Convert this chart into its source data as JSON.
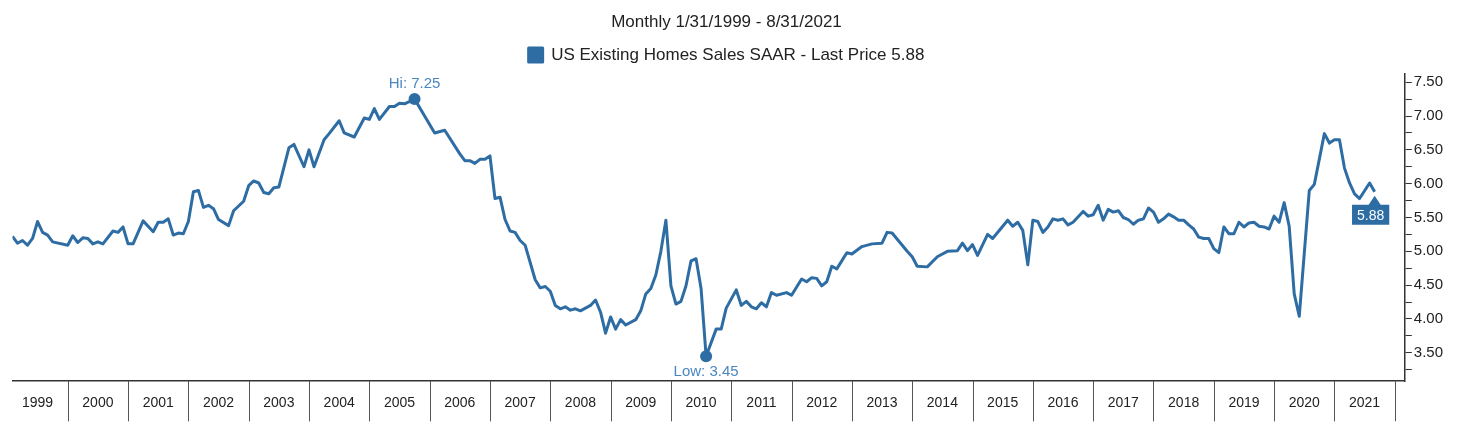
{
  "chart_data": {
    "type": "line",
    "legend_title": "Monthly 1/31/1999 - 8/31/2021",
    "legend": "top",
    "grid": false,
    "marker": "none",
    "line_style": "solid",
    "xlim": [
      "1999-01",
      "2022-02"
    ],
    "xticks": [
      {
        "value": "1999-06",
        "label": "1999"
      },
      {
        "value": "2000-06",
        "label": "2000"
      },
      {
        "value": "2001-06",
        "label": "2001"
      },
      {
        "value": "2002-06",
        "label": "2002"
      },
      {
        "value": "2003-06",
        "label": "2003"
      },
      {
        "value": "2004-06",
        "label": "2004"
      },
      {
        "value": "2005-06",
        "label": "2005"
      },
      {
        "value": "2006-06",
        "label": "2006"
      },
      {
        "value": "2007-06",
        "label": "2007"
      },
      {
        "value": "2008-06",
        "label": "2008"
      },
      {
        "value": "2009-06",
        "label": "2009"
      },
      {
        "value": "2010-06",
        "label": "2010"
      },
      {
        "value": "2011-06",
        "label": "2011"
      },
      {
        "value": "2012-06",
        "label": "2012"
      },
      {
        "value": "2013-06",
        "label": "2013"
      },
      {
        "value": "2014-06",
        "label": "2014"
      },
      {
        "value": "2015-06",
        "label": "2015"
      },
      {
        "value": "2016-06",
        "label": "2016"
      },
      {
        "value": "2017-06",
        "label": "2017"
      },
      {
        "value": "2018-06",
        "label": "2018"
      },
      {
        "value": "2019-06",
        "label": "2019"
      },
      {
        "value": "2020-06",
        "label": "2020"
      },
      {
        "value": "2021-06",
        "label": "2021"
      }
    ],
    "ylim": [
      3.08,
      7.63
    ],
    "yticks": [
      {
        "value": 3.25,
        "label": null
      },
      {
        "value": 3.5,
        "label": "3.50"
      },
      {
        "value": 3.75,
        "label": null
      },
      {
        "value": 4,
        "label": "4.00"
      },
      {
        "value": 4.25,
        "label": null
      },
      {
        "value": 4.5,
        "label": "4.50"
      },
      {
        "value": 4.75,
        "label": null
      },
      {
        "value": 5,
        "label": "5.00"
      },
      {
        "value": 5.25,
        "label": null
      },
      {
        "value": 5.5,
        "label": "5.50"
      },
      {
        "value": 5.75,
        "label": null
      },
      {
        "value": 6,
        "label": "6.00"
      },
      {
        "value": 6.25,
        "label": null
      },
      {
        "value": 6.5,
        "label": "6.50"
      },
      {
        "value": 6.75,
        "label": null
      },
      {
        "value": 7,
        "label": "7.00"
      },
      {
        "value": 7.25,
        "label": null
      },
      {
        "value": 7.5,
        "label": "7.50"
      }
    ],
    "annotations": [
      {
        "text": "Hi: 7.25",
        "x": "2005-09",
        "y": 7.25
      },
      {
        "text": "Low: 3.45",
        "x": "2010-07",
        "y": 3.45
      },
      {
        "text": "5.88",
        "x": "2021-08",
        "y": 5.88
      }
    ],
    "series": [
      {
        "name": "US Existing Homes Sales SAAR - Last Price 5.88",
        "color": "#2e6da4",
        "x": [
          "1999-01",
          "1999-02",
          "1999-03",
          "1999-04",
          "1999-05",
          "1999-06",
          "1999-07",
          "1999-08",
          "1999-09",
          "1999-12",
          "2000-01",
          "2000-02",
          "2000-03",
          "2000-04",
          "2000-05",
          "2000-06",
          "2000-07",
          "2000-09",
          "2000-10",
          "2000-11",
          "2000-12",
          "2001-01",
          "2001-03",
          "2001-05",
          "2001-06",
          "2001-07",
          "2001-08",
          "2001-09",
          "2001-10",
          "2001-11",
          "2001-12",
          "2002-01",
          "2002-02",
          "2002-03",
          "2002-04",
          "2002-05",
          "2002-06",
          "2002-08",
          "2002-09",
          "2002-11",
          "2002-12",
          "2003-01",
          "2003-02",
          "2003-03",
          "2003-04",
          "2003-05",
          "2003-06",
          "2003-08",
          "2003-09",
          "2003-11",
          "2003-12",
          "2004-01",
          "2004-03",
          "2004-04",
          "2004-06",
          "2004-07",
          "2004-09",
          "2004-11",
          "2004-12",
          "2005-01",
          "2005-02",
          "2005-04",
          "2005-05",
          "2005-06",
          "2005-07",
          "2005-09",
          "2006-01",
          "2006-03",
          "2006-06",
          "2006-07",
          "2006-08",
          "2006-09",
          "2006-10",
          "2006-11",
          "2006-12",
          "2007-01",
          "2007-02",
          "2007-03",
          "2007-04",
          "2007-05",
          "2007-06",
          "2007-07",
          "2007-09",
          "2007-10",
          "2007-11",
          "2007-12",
          "2008-01",
          "2008-02",
          "2008-03",
          "2008-04",
          "2008-05",
          "2008-06",
          "2008-08",
          "2008-09",
          "2008-10",
          "2008-11",
          "2008-12",
          "2009-01",
          "2009-02",
          "2009-03",
          "2009-05",
          "2009-06",
          "2009-07",
          "2009-08",
          "2009-09",
          "2009-10",
          "2009-11",
          "2009-12",
          "2010-01",
          "2010-02",
          "2010-03",
          "2010-04",
          "2010-05",
          "2010-06",
          "2010-07",
          "2010-09",
          "2010-10",
          "2010-11",
          "2011-01",
          "2011-02",
          "2011-03",
          "2011-04",
          "2011-05",
          "2011-06",
          "2011-07",
          "2011-08",
          "2011-09",
          "2011-11",
          "2011-12",
          "2012-02",
          "2012-03",
          "2012-04",
          "2012-05",
          "2012-06",
          "2012-07",
          "2012-08",
          "2012-09",
          "2012-11",
          "2012-12",
          "2013-02",
          "2013-04",
          "2013-06",
          "2013-07",
          "2013-08",
          "2013-11",
          "2013-12",
          "2014-01",
          "2014-03",
          "2014-05",
          "2014-07",
          "2014-09",
          "2014-10",
          "2014-11",
          "2014-12",
          "2015-01",
          "2015-03",
          "2015-04",
          "2015-07",
          "2015-08",
          "2015-09",
          "2015-10",
          "2015-11",
          "2015-12",
          "2016-01",
          "2016-02",
          "2016-03",
          "2016-04",
          "2016-05",
          "2016-06",
          "2016-07",
          "2016-08",
          "2016-10",
          "2016-11",
          "2016-12",
          "2017-01",
          "2017-02",
          "2017-03",
          "2017-04",
          "2017-05",
          "2017-06",
          "2017-07",
          "2017-08",
          "2017-09",
          "2017-10",
          "2017-11",
          "2017-12",
          "2018-01",
          "2018-02",
          "2018-03",
          "2018-04",
          "2018-05",
          "2018-06",
          "2018-07",
          "2018-08",
          "2018-09",
          "2018-10",
          "2018-11",
          "2018-12",
          "2019-01",
          "2019-02",
          "2019-03",
          "2019-04",
          "2019-05",
          "2019-06",
          "2019-07",
          "2019-08",
          "2019-09",
          "2019-10",
          "2019-11",
          "2019-12",
          "2020-01",
          "2020-02",
          "2020-03",
          "2020-04",
          "2020-05",
          "2020-07",
          "2020-08",
          "2020-10",
          "2020-11",
          "2020-12",
          "2021-01",
          "2021-02",
          "2021-03",
          "2021-04",
          "2021-05",
          "2021-07",
          "2021-08"
        ],
        "values": [
          5.22,
          5.12,
          5.16,
          5.09,
          5.19,
          5.44,
          5.28,
          5.24,
          5.14,
          5.09,
          5.23,
          5.13,
          5.2,
          5.19,
          5.11,
          5.14,
          5.11,
          5.3,
          5.28,
          5.36,
          5.11,
          5.11,
          5.45,
          5.29,
          5.43,
          5.43,
          5.48,
          5.24,
          5.27,
          5.26,
          5.44,
          5.88,
          5.9,
          5.65,
          5.68,
          5.63,
          5.47,
          5.38,
          5.6,
          5.74,
          5.97,
          6.04,
          6.01,
          5.87,
          5.85,
          5.94,
          5.95,
          6.53,
          6.58,
          6.25,
          6.5,
          6.25,
          6.65,
          6.74,
          6.93,
          6.75,
          6.69,
          6.97,
          6.95,
          7.11,
          6.95,
          7.14,
          7.14,
          7.19,
          7.18,
          7.25,
          6.75,
          6.79,
          6.44,
          6.34,
          6.34,
          6.3,
          6.36,
          6.36,
          6.41,
          5.78,
          5.8,
          5.47,
          5.3,
          5.28,
          5.16,
          5.09,
          4.58,
          4.46,
          4.48,
          4.41,
          4.2,
          4.15,
          4.18,
          4.13,
          4.15,
          4.12,
          4.2,
          4.28,
          4.1,
          3.79,
          4.03,
          3.85,
          3.99,
          3.91,
          3.99,
          4.12,
          4.37,
          4.45,
          4.65,
          5.0,
          5.46,
          4.49,
          4.22,
          4.26,
          4.49,
          4.86,
          4.89,
          4.45,
          3.45,
          3.85,
          3.85,
          4.16,
          4.43,
          4.2,
          4.26,
          4.18,
          4.15,
          4.24,
          4.18,
          4.39,
          4.35,
          4.39,
          4.35,
          4.59,
          4.55,
          4.61,
          4.6,
          4.49,
          4.55,
          4.78,
          4.74,
          4.98,
          4.96,
          5.07,
          5.11,
          5.12,
          5.28,
          5.27,
          5.0,
          4.92,
          4.78,
          4.77,
          4.92,
          5.0,
          5.01,
          5.12,
          5.01,
          5.1,
          4.94,
          5.25,
          5.19,
          5.46,
          5.37,
          5.43,
          5.31,
          4.8,
          5.46,
          5.44,
          5.28,
          5.36,
          5.48,
          5.46,
          5.48,
          5.39,
          5.43,
          5.59,
          5.52,
          5.54,
          5.68,
          5.46,
          5.62,
          5.58,
          5.6,
          5.5,
          5.47,
          5.4,
          5.46,
          5.48,
          5.64,
          5.58,
          5.43,
          5.48,
          5.55,
          5.51,
          5.46,
          5.46,
          5.39,
          5.33,
          5.21,
          5.19,
          5.19,
          5.04,
          4.98,
          5.36,
          5.26,
          5.26,
          5.43,
          5.36,
          5.42,
          5.43,
          5.37,
          5.36,
          5.33,
          5.52,
          5.43,
          5.72,
          5.37,
          4.37,
          4.04,
          5.9,
          5.99,
          6.74,
          6.6,
          6.65,
          6.65,
          6.23,
          6.01,
          5.85,
          5.78,
          6.01,
          5.88
        ]
      }
    ]
  }
}
